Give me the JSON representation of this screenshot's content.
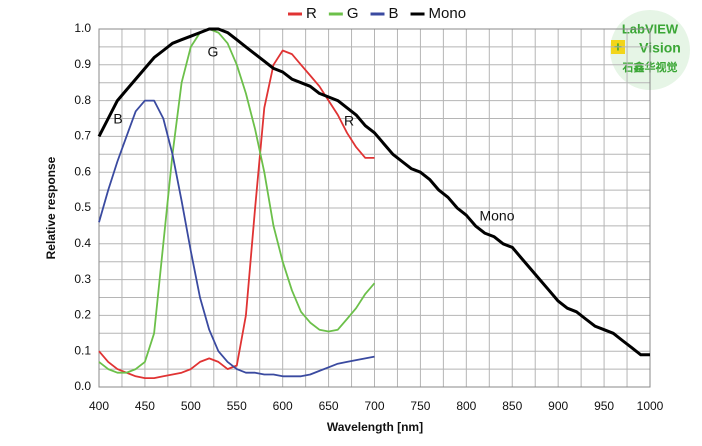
{
  "chart_data": {
    "type": "line",
    "xlabel": "Wavelength [nm]",
    "ylabel": "Relative response",
    "x": [
      400,
      410,
      420,
      430,
      440,
      450,
      460,
      470,
      480,
      490,
      500,
      510,
      520,
      530,
      540,
      550,
      560,
      570,
      580,
      590,
      600,
      610,
      620,
      630,
      640,
      650,
      660,
      670,
      680,
      690,
      700,
      710,
      720,
      730,
      740,
      750,
      760,
      770,
      780,
      790,
      800,
      810,
      820,
      830,
      840,
      850,
      860,
      870,
      880,
      890,
      900,
      910,
      920,
      930,
      940,
      950,
      960,
      970,
      980,
      990,
      1000
    ],
    "series": [
      {
        "name": "R",
        "color": "#e03333",
        "values": [
          0.1,
          0.07,
          0.05,
          0.04,
          0.03,
          0.025,
          0.025,
          0.03,
          0.035,
          0.04,
          0.05,
          0.07,
          0.08,
          0.07,
          0.05,
          0.06,
          0.2,
          0.5,
          0.78,
          0.9,
          0.94,
          0.93,
          0.9,
          0.87,
          0.84,
          0.8,
          0.76,
          0.71,
          0.67,
          0.64,
          0.64,
          null,
          null,
          null,
          null,
          null,
          null,
          null,
          null,
          null,
          null,
          null,
          null,
          null,
          null,
          null,
          null,
          null,
          null,
          null,
          null,
          null,
          null,
          null,
          null,
          null,
          null,
          null,
          null,
          null,
          null
        ]
      },
      {
        "name": "G",
        "color": "#6cc04a",
        "values": [
          0.07,
          0.05,
          0.04,
          0.04,
          0.05,
          0.07,
          0.15,
          0.4,
          0.65,
          0.85,
          0.95,
          0.99,
          1.0,
          0.99,
          0.96,
          0.9,
          0.82,
          0.72,
          0.6,
          0.45,
          0.35,
          0.27,
          0.21,
          0.18,
          0.16,
          0.155,
          0.16,
          0.19,
          0.22,
          0.26,
          0.29,
          null,
          null,
          null,
          null,
          null,
          null,
          null,
          null,
          null,
          null,
          null,
          null,
          null,
          null,
          null,
          null,
          null,
          null,
          null,
          null,
          null,
          null,
          null,
          null,
          null,
          null,
          null,
          null,
          null,
          null
        ]
      },
      {
        "name": "B",
        "color": "#3a4aa0",
        "values": [
          0.46,
          0.55,
          0.63,
          0.7,
          0.77,
          0.8,
          0.8,
          0.75,
          0.65,
          0.52,
          0.38,
          0.25,
          0.16,
          0.1,
          0.07,
          0.05,
          0.04,
          0.04,
          0.035,
          0.035,
          0.03,
          0.03,
          0.03,
          0.035,
          0.045,
          0.055,
          0.065,
          0.07,
          0.075,
          0.08,
          0.085,
          null,
          null,
          null,
          null,
          null,
          null,
          null,
          null,
          null,
          null,
          null,
          null,
          null,
          null,
          null,
          null,
          null,
          null,
          null,
          null,
          null,
          null,
          null,
          null,
          null,
          null,
          null,
          null,
          null,
          null
        ]
      },
      {
        "name": "Mono",
        "color": "#000000",
        "values": [
          0.7,
          0.75,
          0.8,
          0.83,
          0.86,
          0.89,
          0.92,
          0.94,
          0.96,
          0.97,
          0.98,
          0.99,
          1.0,
          1.0,
          0.99,
          0.97,
          0.95,
          0.93,
          0.91,
          0.89,
          0.88,
          0.86,
          0.85,
          0.84,
          0.82,
          0.81,
          0.8,
          0.78,
          0.76,
          0.73,
          0.71,
          0.68,
          0.65,
          0.63,
          0.61,
          0.6,
          0.58,
          0.55,
          0.53,
          0.5,
          0.48,
          0.45,
          0.43,
          0.42,
          0.4,
          0.39,
          0.36,
          0.33,
          0.3,
          0.27,
          0.24,
          0.22,
          0.21,
          0.19,
          0.17,
          0.16,
          0.15,
          0.13,
          0.11,
          0.09,
          0.09
        ]
      }
    ],
    "annotations": [
      "B",
      "G",
      "R",
      "Mono"
    ],
    "xlim": [
      400,
      1000
    ],
    "xticks": [
      400,
      450,
      500,
      550,
      600,
      650,
      700,
      750,
      800,
      850,
      900,
      950,
      1000
    ],
    "xminorticks": [
      425,
      475,
      525,
      575,
      625,
      675,
      725,
      775,
      825,
      875,
      925,
      975
    ],
    "ylim": [
      0,
      1
    ],
    "yticks": [
      {
        "value": 0,
        "label": "0.0"
      },
      0.1,
      0.2,
      0.3,
      0.4,
      0.5,
      0.6,
      0.7,
      0.8,
      0.9,
      {
        "value": 1,
        "label": "1.0"
      }
    ],
    "yminorticks": [
      0.05,
      0.15,
      0.25,
      0.35,
      0.45,
      0.55,
      0.65,
      0.75,
      0.85,
      0.95
    ],
    "grid": true,
    "legend": "top"
  },
  "watermark": {
    "lines": [
      "LabVIEW",
      "Vision",
      "石鑫华视觉"
    ]
  }
}
